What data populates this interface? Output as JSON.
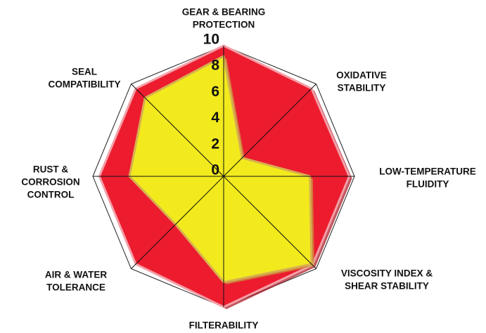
{
  "chart_data": {
    "type": "radar",
    "categories": [
      [
        "GEAR & BEARING",
        "PROTECTION"
      ],
      [
        "OXIDATIVE",
        "STABILITY"
      ],
      [
        "LOW-TEMPERATURE",
        "FLUIDITY"
      ],
      [
        "VISCOSITY INDEX &",
        "SHEAR STABILITY"
      ],
      [
        "FILTERABILITY"
      ],
      [
        "AIR & WATER",
        "TOLERANCE"
      ],
      [
        "RUST &",
        "CORROSION",
        "CONTROL"
      ],
      [
        "SEAL",
        "COMPATIBILITY"
      ]
    ],
    "series": [
      {
        "color": "#ec1c2e",
        "values": [
          10,
          9.5,
          9.6,
          9.6,
          10,
          9.5,
          9.5,
          9.5
        ]
      },
      {
        "color": "#f2ea1d",
        "values": [
          9.2,
          2,
          6.6,
          9.5,
          8.1,
          5.2,
          7.2,
          8.5
        ]
      }
    ],
    "ylim": [
      0,
      10
    ],
    "yticks": [
      0,
      2,
      4,
      6,
      8,
      10
    ]
  }
}
